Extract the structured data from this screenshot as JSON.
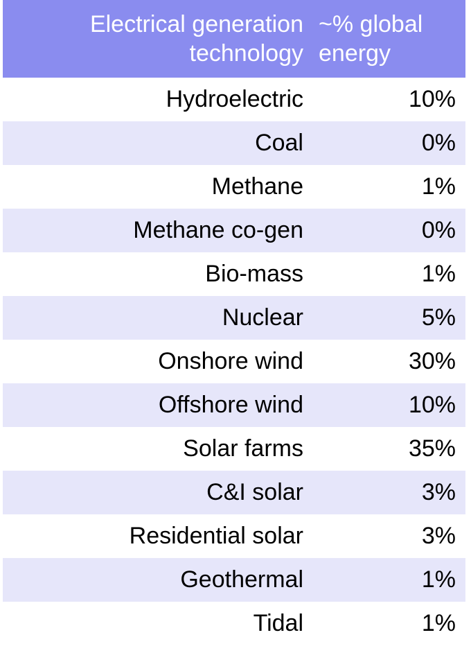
{
  "table": {
    "headers": {
      "technology_line1": "Electrical generation",
      "technology_line2": "technology",
      "share_line1": "~% global",
      "share_line2": "energy"
    },
    "rows": [
      {
        "technology": "Hydroelectric",
        "share": "10%"
      },
      {
        "technology": "Coal",
        "share": "0%"
      },
      {
        "technology": "Methane",
        "share": "1%"
      },
      {
        "technology": "Methane co-gen",
        "share": "0%"
      },
      {
        "technology": "Bio-mass",
        "share": "1%"
      },
      {
        "technology": "Nuclear",
        "share": "5%"
      },
      {
        "technology": "Onshore wind",
        "share": "30%"
      },
      {
        "technology": "Offshore wind",
        "share": "10%"
      },
      {
        "technology": "Solar farms",
        "share": "35%"
      },
      {
        "technology": "C&I solar",
        "share": "3%"
      },
      {
        "technology": "Residential solar",
        "share": "3%"
      },
      {
        "technology": "Geothermal",
        "share": "1%"
      },
      {
        "technology": "Tidal",
        "share": "1%"
      }
    ]
  },
  "colors": {
    "header_background": "#8a8cef",
    "header_text": "#ffffff",
    "alternate_row_background": "#e6e6fa"
  }
}
